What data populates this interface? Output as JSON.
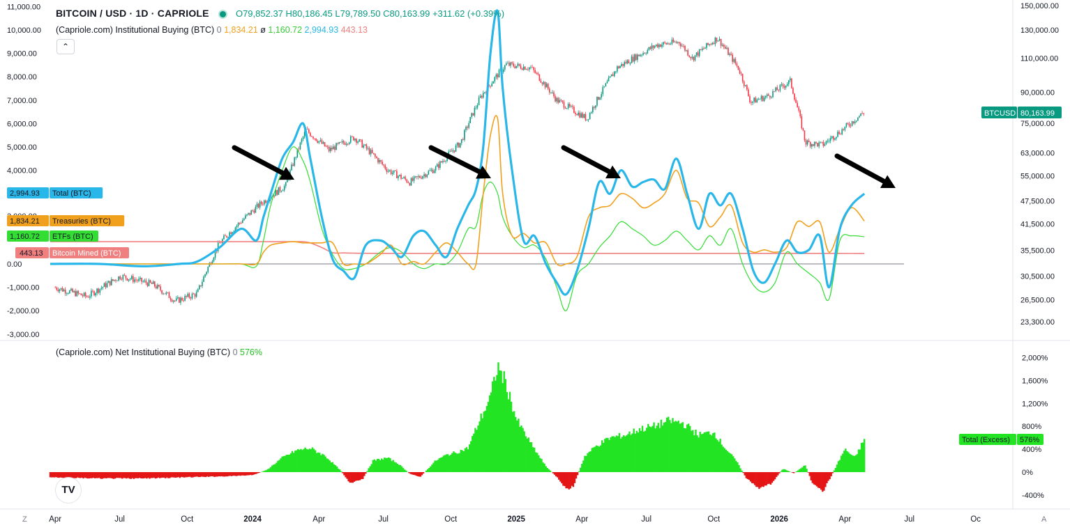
{
  "header": {
    "symbol_title": "BITCOIN / USD · 1D · CAPRIOLE",
    "open": "O79,852.37",
    "high": "H80,186.45",
    "low": "L79,789.50",
    "close": "C80,163.99",
    "change": "+311.62 (+0.39%)",
    "indicator1_name": "(Capriole.com) Institutional Buying (BTC)",
    "indicator1_zero": "0",
    "indicator1_v1": "1,834.21",
    "indicator1_sym": "ø",
    "indicator1_v2": "1,160.72",
    "indicator1_v3": "2,994.93",
    "indicator1_v4": "443.13",
    "indicator2_name": "(Capriole.com) Net Institutional Buying (BTC)",
    "indicator2_zero": "0",
    "indicator2_value": "576%",
    "collapse_icon": "chevron-up-icon",
    "logo": "TV"
  },
  "colors": {
    "price_up": "#089981",
    "price_down": "#f23645",
    "total": "#29b6e8",
    "treasuries": "#f0a01c",
    "etfs": "#33dd33",
    "mined": "#f08080",
    "hist_pos": "#22e422",
    "hist_neg": "#e41515",
    "zero_line": "#787b86",
    "btcusd_tag": "#089981"
  },
  "markers": {
    "total": {
      "value": "2,994.93",
      "label": "Total (BTC)"
    },
    "treasuries": {
      "value": "1,834.21",
      "label": "Treasuries (BTC)"
    },
    "etfs": {
      "value": "1,160.72",
      "label": "ETFs (BTC)"
    },
    "mined": {
      "value": "443.13",
      "label": "Bitcoin Mined (BTC)"
    },
    "btcusd": {
      "label": "BTCUSD",
      "value": "80,163.99"
    },
    "excess": {
      "label": "Total (Excess)",
      "value": "576%"
    }
  },
  "axes": {
    "left_ticks": [
      "11,000.00",
      "10,000.00",
      "9,000.00",
      "8,000.00",
      "7,000.00",
      "6,000.00",
      "5,000.00",
      "4,000.00",
      "2,000.00",
      "0.00",
      "-1,000.00",
      "-2,000.00",
      "-3,000.00"
    ],
    "right_ticks": [
      "150,000.00",
      "130,000.00",
      "110,000.00",
      "90,000.00",
      "75,000.00",
      "63,000.00",
      "55,000.00",
      "47,500.00",
      "41,500.00",
      "35,500.00",
      "30,500.00",
      "26,500.00",
      "23,300.00"
    ],
    "hist_ticks": [
      "2,000%",
      "1,600%",
      "1,200%",
      "800%",
      "400%",
      "0%",
      "-400%"
    ],
    "time_labels": [
      "Apr",
      "Jul",
      "Oct",
      "2024",
      "Apr",
      "Jul",
      "Oct",
      "2025",
      "Apr",
      "Jul",
      "Oct",
      "2026",
      "Apr",
      "Jul",
      "Oc"
    ],
    "bold_time_labels": [
      "2024",
      "2025",
      "2026"
    ],
    "corner_left": "Z",
    "corner_right": "A"
  },
  "chart_data": [
    {
      "type": "line",
      "name": "BTCUSD",
      "log_scale": true,
      "ylim": [
        23300,
        150000
      ],
      "x": [
        "2023-04-01",
        "2023-05-15",
        "2023-07-01",
        "2023-08-15",
        "2023-09-15",
        "2023-10-15",
        "2023-11-15",
        "2024-01-10",
        "2024-02-15",
        "2024-03-14",
        "2024-04-15",
        "2024-05-20",
        "2024-07-05",
        "2024-08-05",
        "2024-09-10",
        "2024-10-15",
        "2024-11-12",
        "2024-12-17",
        "2025-01-20",
        "2025-02-25",
        "2025-03-15",
        "2025-04-08",
        "2025-05-20",
        "2025-07-14",
        "2025-08-14",
        "2025-09-01",
        "2025-10-06",
        "2025-11-05",
        "2025-11-21",
        "2025-12-15",
        "2026-01-15",
        "2026-02-05",
        "2026-03-01",
        "2026-04-01",
        "2026-04-28"
      ],
      "close": [
        28500,
        27000,
        30500,
        29000,
        26300,
        27500,
        37000,
        46500,
        52000,
        72000,
        64000,
        69000,
        57000,
        53000,
        57500,
        67000,
        88000,
        106000,
        104000,
        86000,
        82000,
        77000,
        104000,
        119000,
        121000,
        110000,
        124000,
        103000,
        85000,
        88000,
        96000,
        67000,
        66000,
        73000,
        80164
      ]
    },
    {
      "type": "line",
      "title": "(Capriole.com) Institutional Buying (BTC)",
      "ylim": [
        -3000,
        11000
      ],
      "x": [
        "2023-03-25",
        "2023-06-01",
        "2023-08-01",
        "2023-09-20",
        "2023-10-15",
        "2023-11-15",
        "2023-12-15",
        "2024-01-05",
        "2024-01-15",
        "2024-01-25",
        "2024-02-10",
        "2024-02-25",
        "2024-03-10",
        "2024-03-20",
        "2024-04-05",
        "2024-04-20",
        "2024-05-05",
        "2024-05-20",
        "2024-06-05",
        "2024-06-25",
        "2024-07-10",
        "2024-07-25",
        "2024-08-10",
        "2024-08-25",
        "2024-09-10",
        "2024-09-25",
        "2024-10-10",
        "2024-10-25",
        "2024-11-05",
        "2024-11-15",
        "2024-11-25",
        "2024-12-05",
        "2024-12-12",
        "2024-12-25",
        "2025-01-10",
        "2025-01-25",
        "2025-02-10",
        "2025-02-25",
        "2025-03-10",
        "2025-03-25",
        "2025-04-10",
        "2025-04-25",
        "2025-05-10",
        "2025-05-25",
        "2025-06-10",
        "2025-06-25",
        "2025-07-10",
        "2025-07-25",
        "2025-08-10",
        "2025-08-25",
        "2025-09-10",
        "2025-09-25",
        "2025-10-10",
        "2025-10-25",
        "2025-11-10",
        "2025-11-25",
        "2025-12-10",
        "2025-12-25",
        "2026-01-10",
        "2026-01-25",
        "2026-02-10",
        "2026-02-25",
        "2026-03-10",
        "2026-03-25",
        "2026-04-10",
        "2026-04-28"
      ],
      "series": [
        {
          "name": "Total (BTC)",
          "values": [
            0,
            0,
            -100,
            0,
            100,
            700,
            1500,
            1000,
            2000,
            3000,
            4500,
            5200,
            6000,
            4500,
            2000,
            200,
            -300,
            -600,
            800,
            1000,
            700,
            300,
            1200,
            1400,
            800,
            300,
            1500,
            2500,
            3200,
            5000,
            9000,
            10800,
            7500,
            4000,
            1000,
            1200,
            0,
            -800,
            -1300,
            -300,
            1500,
            3500,
            3000,
            4000,
            3300,
            3500,
            3600,
            3200,
            4500,
            3000,
            1500,
            3000,
            2500,
            3000,
            1500,
            -300,
            -800,
            0,
            1000,
            500,
            600,
            1200,
            -1000,
            1500,
            2500,
            3000
          ]
        },
        {
          "name": "Treasuries (BTC)",
          "values": [
            0,
            0,
            0,
            0,
            0,
            0,
            0,
            0,
            500,
            800,
            900,
            950,
            900,
            900,
            900,
            900,
            0,
            0,
            0,
            400,
            800,
            0,
            100,
            0,
            500,
            900,
            500,
            0,
            0,
            3000,
            5500,
            6200,
            3000,
            1200,
            1300,
            900,
            900,
            0,
            0,
            300,
            2000,
            2400,
            2500,
            3000,
            2800,
            2400,
            2600,
            3000,
            4000,
            2800,
            2600,
            1600,
            2000,
            2500,
            900,
            500,
            600,
            500,
            700,
            1800,
            1600,
            1800,
            500,
            1500,
            2400,
            1834
          ]
        },
        {
          "name": "ETFs (BTC)",
          "values": [
            0,
            0,
            0,
            0,
            0,
            0,
            0,
            -100,
            1000,
            2500,
            4000,
            5000,
            4400,
            3500,
            1500,
            400,
            -200,
            -200,
            0,
            500,
            700,
            500,
            0,
            -200,
            0,
            0,
            500,
            1500,
            1600,
            3000,
            3500,
            3000,
            2000,
            1200,
            700,
            800,
            200,
            -1000,
            -2000,
            -500,
            0,
            700,
            1200,
            1800,
            1500,
            1200,
            800,
            1000,
            1400,
            1000,
            600,
            1200,
            800,
            1500,
            0,
            -900,
            -1200,
            -800,
            500,
            0,
            -400,
            -800,
            -1500,
            1000,
            1200,
            1161
          ]
        },
        {
          "name": "Bitcoin Mined (BTC)",
          "values": [
            950,
            950,
            950,
            950,
            950,
            950,
            950,
            950,
            950,
            950,
            950,
            950,
            950,
            900,
            700,
            480,
            470,
            460,
            455,
            450,
            450,
            450,
            450,
            450,
            450,
            450,
            450,
            450,
            450,
            450,
            450,
            450,
            450,
            450,
            450,
            450,
            450,
            450,
            450,
            450,
            450,
            450,
            450,
            450,
            450,
            450,
            450,
            450,
            450,
            450,
            450,
            450,
            450,
            450,
            450,
            450,
            450,
            450,
            450,
            450,
            450,
            450,
            450,
            450,
            445,
            443
          ]
        }
      ]
    },
    {
      "type": "bar",
      "title": "(Capriole.com) Net Institutional Buying (BTC)",
      "ylim": [
        -600,
        2100
      ],
      "x": [
        "2023-03-25",
        "2023-06-01",
        "2023-08-01",
        "2023-10-01",
        "2023-12-01",
        "2024-01-01",
        "2024-01-20",
        "2024-02-10",
        "2024-03-01",
        "2024-03-20",
        "2024-04-10",
        "2024-05-01",
        "2024-05-15",
        "2024-06-01",
        "2024-06-15",
        "2024-07-05",
        "2024-07-20",
        "2024-08-05",
        "2024-08-20",
        "2024-09-10",
        "2024-09-25",
        "2024-10-10",
        "2024-10-25",
        "2024-11-10",
        "2024-11-25",
        "2024-12-05",
        "2024-12-15",
        "2025-01-01",
        "2025-01-20",
        "2025-02-10",
        "2025-02-25",
        "2025-03-10",
        "2025-03-20",
        "2025-04-05",
        "2025-04-20",
        "2025-05-10",
        "2025-06-01",
        "2025-06-20",
        "2025-07-10",
        "2025-08-01",
        "2025-08-20",
        "2025-09-10",
        "2025-10-01",
        "2025-10-15",
        "2025-11-01",
        "2025-11-15",
        "2025-12-01",
        "2025-12-20",
        "2026-01-05",
        "2026-01-20",
        "2026-02-05",
        "2026-02-15",
        "2026-03-01",
        "2026-03-15",
        "2026-04-01",
        "2026-04-15",
        "2026-04-28"
      ],
      "series": [
        {
          "name": "Total (Excess)",
          "values": [
            -90,
            -110,
            -110,
            -90,
            -70,
            -50,
            40,
            250,
            380,
            420,
            280,
            30,
            -200,
            -120,
            200,
            250,
            150,
            -30,
            -80,
            200,
            300,
            350,
            420,
            900,
            1300,
            1850,
            1600,
            900,
            500,
            100,
            -80,
            -300,
            -250,
            280,
            450,
            600,
            650,
            750,
            800,
            900,
            850,
            650,
            700,
            450,
            200,
            -100,
            -280,
            -200,
            60,
            -20,
            120,
            -200,
            -350,
            -20,
            400,
            250,
            576
          ]
        }
      ]
    }
  ]
}
